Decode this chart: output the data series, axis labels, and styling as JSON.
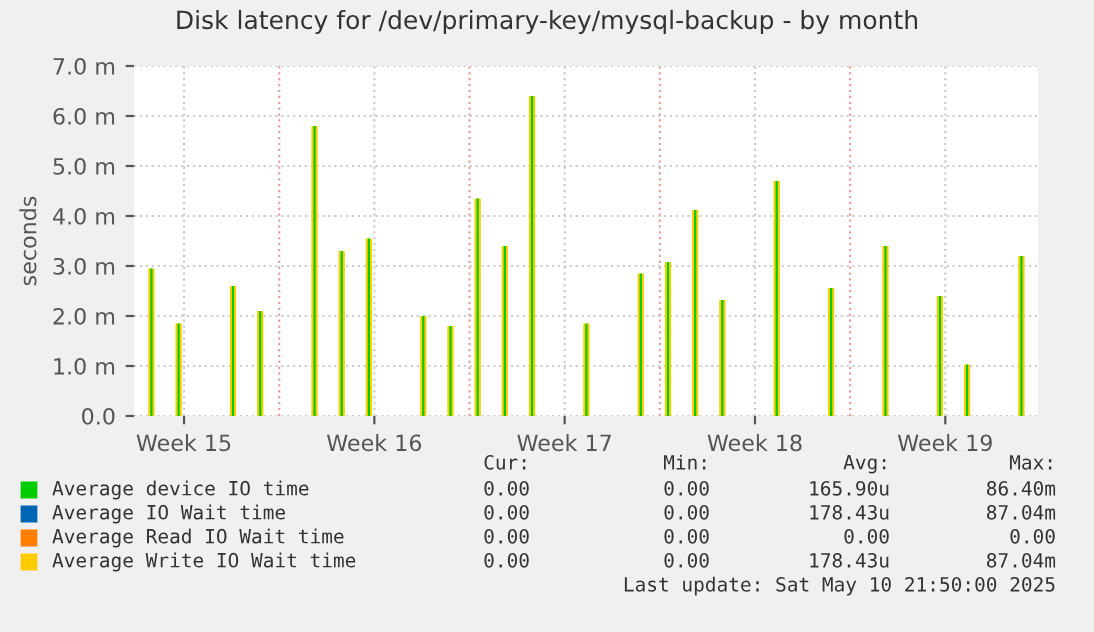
{
  "chart_data": {
    "type": "bar",
    "title": "Disk latency for /dev/primary-key/mysql-backup - by month",
    "ylabel": "seconds",
    "x": [
      "2025-04-08T07:12",
      "2025-04-09T07:12",
      "2025-04-11T07:12",
      "2025-04-12T07:12",
      "2025-04-14T07:12",
      "2025-04-15T07:12",
      "2025-04-16T07:12",
      "2025-04-18T07:12",
      "2025-04-19T07:12",
      "2025-04-20T07:12",
      "2025-04-21T07:12",
      "2025-04-22T07:12",
      "2025-04-24T07:12",
      "2025-04-26T07:12",
      "2025-04-27T07:12",
      "2025-04-28T07:12",
      "2025-04-29T07:12",
      "2025-05-01T07:12",
      "2025-05-03T07:12",
      "2025-05-05T07:12",
      "2025-05-07T07:12",
      "2025-05-08T07:12",
      "2025-05-10T07:12"
    ],
    "series": [
      {
        "name": "Average device IO time",
        "color": "#00cc00",
        "values": [
          2.95,
          1.85,
          2.6,
          2.1,
          5.8,
          3.3,
          3.55,
          2.0,
          1.8,
          4.35,
          3.4,
          6.4,
          1.85,
          2.85,
          3.08,
          4.12,
          2.32,
          4.7,
          2.56,
          3.4,
          2.4,
          1.03,
          3.2
        ]
      },
      {
        "name": "Average IO Wait time",
        "color": "#0066b3",
        "values": [
          null,
          null,
          null,
          null,
          null,
          null,
          null,
          null,
          null,
          null,
          null,
          null,
          null,
          null,
          null,
          null,
          null,
          null,
          null,
          null,
          null,
          null,
          null
        ]
      },
      {
        "name": "Average Read IO Wait time",
        "color": "#ff8000",
        "values": [
          0,
          0,
          0,
          0,
          0,
          0,
          0,
          0,
          0,
          0,
          0,
          0,
          0,
          0,
          0,
          0,
          0,
          0,
          0,
          0,
          0,
          0,
          0
        ]
      },
      {
        "name": "Average Write IO Wait time",
        "color": "#ffcc00",
        "values": [
          2.95,
          1.85,
          2.6,
          2.1,
          5.8,
          3.3,
          3.55,
          2.0,
          1.8,
          4.35,
          3.4,
          6.4,
          1.85,
          2.85,
          3.08,
          4.12,
          2.32,
          4.7,
          2.56,
          3.4,
          2.4,
          1.03,
          3.2
        ]
      }
    ],
    "xlim": [
      "2025-04-07T15:50",
      "2025-05-10T21:50"
    ],
    "xticks": [
      {
        "value": "2025-04-09T12:00",
        "label": "Week 15"
      },
      {
        "value": "2025-04-16T12:00",
        "label": "Week 16"
      },
      {
        "value": "2025-04-23T12:00",
        "label": "Week 17"
      },
      {
        "value": "2025-04-30T12:00",
        "label": "Week 18"
      },
      {
        "value": "2025-05-07T12:00",
        "label": "Week 19"
      }
    ],
    "ylim": [
      0,
      7.0
    ],
    "yticks": [
      {
        "value": 0,
        "label": "0.0"
      },
      {
        "value": 1,
        "label": "1.0 m"
      },
      {
        "value": 2,
        "label": "2.0 m"
      },
      {
        "value": 3,
        "label": "3.0 m"
      },
      {
        "value": 4,
        "label": "4.0 m"
      },
      {
        "value": 5,
        "label": "5.0 m"
      },
      {
        "value": 6,
        "label": "6.0 m"
      },
      {
        "value": 7,
        "label": "7.0 m"
      }
    ],
    "ref_lines": [
      {
        "axis": "x",
        "value": "2025-04-13",
        "color": "#e8a0a0",
        "line_style": "dotted"
      },
      {
        "axis": "x",
        "value": "2025-04-20",
        "color": "#e8a0a0",
        "line_style": "dotted"
      },
      {
        "axis": "x",
        "value": "2025-04-27",
        "color": "#e8a0a0",
        "line_style": "dotted"
      },
      {
        "axis": "x",
        "value": "2025-05-04",
        "color": "#e8a0a0",
        "line_style": "dotted"
      }
    ],
    "grid": true,
    "legend": "bottom",
    "annotations": [
      "Cur:",
      "Min:",
      "Avg:",
      "Max:",
      "0.00",
      "0.00",
      "165.90u",
      "86.40m",
      "0.00",
      "0.00",
      "178.43u",
      "87.04m",
      "0.00",
      "0.00",
      "0.00",
      "0.00",
      "0.00",
      "0.00",
      "178.43u",
      "87.04m",
      "Last update: Sat May 10 21:50:00 2025"
    ]
  }
}
